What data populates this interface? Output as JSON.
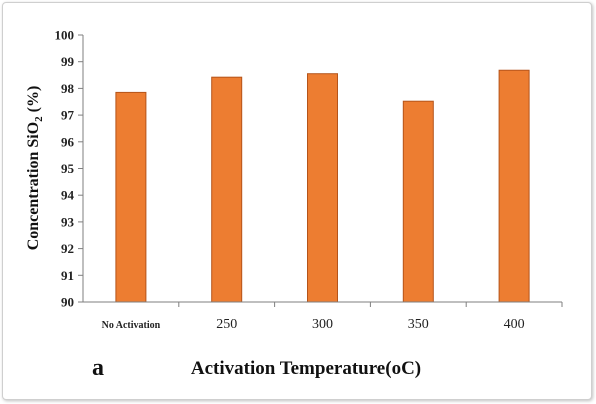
{
  "chart_data": {
    "type": "bar",
    "panel_label": "a",
    "categories": [
      "No Activation",
      "250",
      "300",
      "350",
      "400"
    ],
    "values": [
      97.85,
      98.42,
      98.55,
      97.52,
      98.68
    ],
    "xlabel": "Activation Temperature(oC)",
    "ylabel": "Concentration SiO2 (%)",
    "ylim": [
      90,
      100
    ],
    "yticks": [
      "90",
      "91",
      "92",
      "93",
      "94",
      "95",
      "96",
      "97",
      "98",
      "99",
      "100"
    ],
    "grid": false,
    "legend": "none",
    "bar_color": "#ED7D31",
    "bar_edge_color": "#B5541A"
  }
}
